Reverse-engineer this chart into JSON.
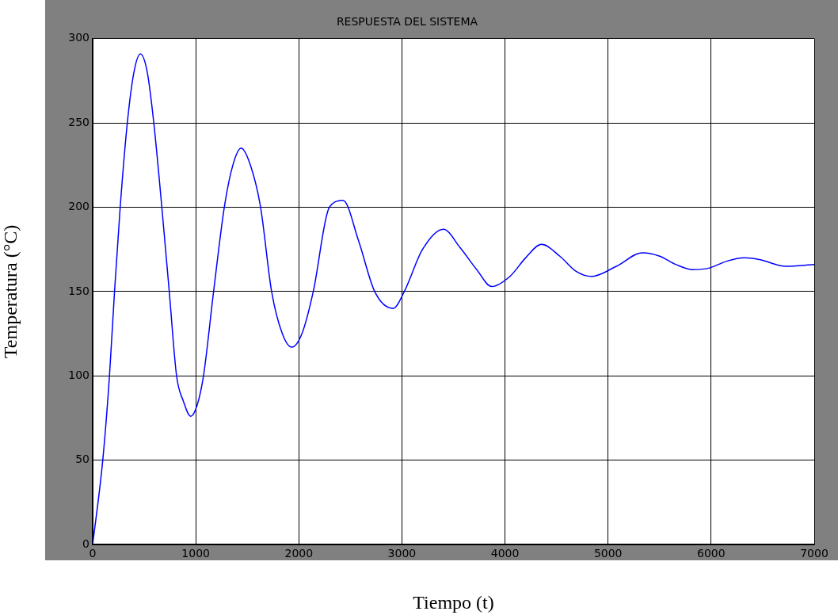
{
  "chart_data": {
    "type": "line",
    "title": "RESPUESTA DEL SISTEMA",
    "xlabel": "Tiempo (t)",
    "ylabel": "Temperatura (°C)",
    "xlim": [
      0,
      7000
    ],
    "xticks": [
      0,
      1000,
      2000,
      3000,
      4000,
      5000,
      6000,
      7000
    ],
    "ylim": [
      0,
      300
    ],
    "yticks": [
      0,
      50,
      100,
      150,
      200,
      250,
      300
    ],
    "grid": true,
    "legend": false,
    "marker": "none",
    "line_style": "solid",
    "series": [
      {
        "color": "#0000ff",
        "x": [
          0,
          98,
          163,
          212,
          267,
          336,
          400,
          463,
          530,
          593,
          671,
          743,
          814,
          880,
          951,
          1010,
          1075,
          1173,
          1277,
          1360,
          1440,
          1530,
          1629,
          1736,
          1840,
          1932,
          2030,
          2140,
          2296,
          2430,
          2580,
          2736,
          2915,
          3023,
          3200,
          3403,
          3565,
          3726,
          3871,
          4048,
          4200,
          4355,
          4532,
          4690,
          4839,
          5081,
          5332,
          5500,
          5660,
          5823,
          5984,
          6150,
          6323,
          6468,
          6726,
          7000
        ],
        "values": [
          0,
          50,
          100,
          150,
          200,
          250,
          280,
          291,
          280,
          250,
          200,
          150,
          100,
          85,
          76,
          82,
          100,
          150,
          200,
          225,
          235,
          225,
          200,
          150,
          125,
          117,
          125,
          150,
          200,
          204,
          180,
          150,
          140,
          150,
          175,
          187,
          176,
          163,
          153,
          159,
          170,
          178,
          171,
          162,
          159,
          165,
          173,
          171,
          166,
          163,
          164,
          168,
          170,
          169,
          165,
          166
        ]
      }
    ]
  }
}
